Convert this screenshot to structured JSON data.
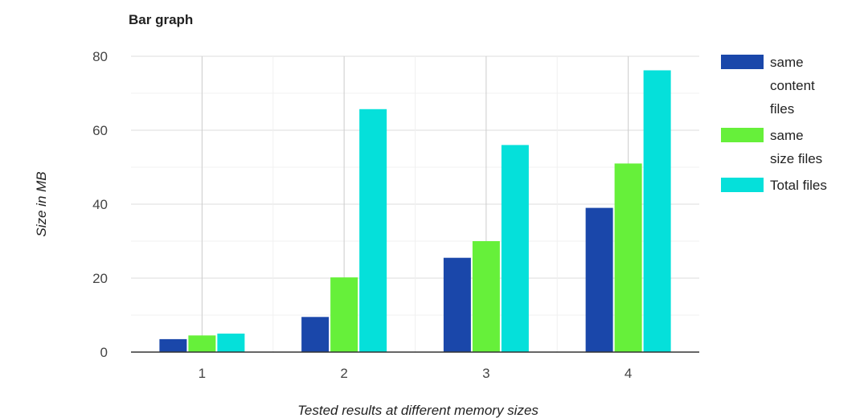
{
  "chart_data": {
    "type": "bar",
    "title": "Bar graph",
    "xlabel": "Tested results at different memory sizes",
    "ylabel": "Size in MB",
    "categories": [
      "1",
      "2",
      "3",
      "4"
    ],
    "ylim": [
      0,
      80
    ],
    "yticks": [
      0,
      20,
      40,
      60,
      80
    ],
    "grid": true,
    "legend": "right",
    "series": [
      {
        "name": "same content files",
        "legend_lines": [
          "same",
          "content",
          "files"
        ],
        "color": "#1a47aa",
        "values": [
          3.5,
          9.5,
          25.5,
          39
        ]
      },
      {
        "name": "same size files",
        "legend_lines": [
          "same",
          "size files"
        ],
        "color": "#66f03a",
        "values": [
          4.5,
          20.2,
          30,
          51
        ]
      },
      {
        "name": "Total files",
        "legend_lines": [
          "Total files"
        ],
        "color": "#05e0da",
        "values": [
          5,
          65.7,
          56,
          76.2
        ]
      }
    ]
  }
}
